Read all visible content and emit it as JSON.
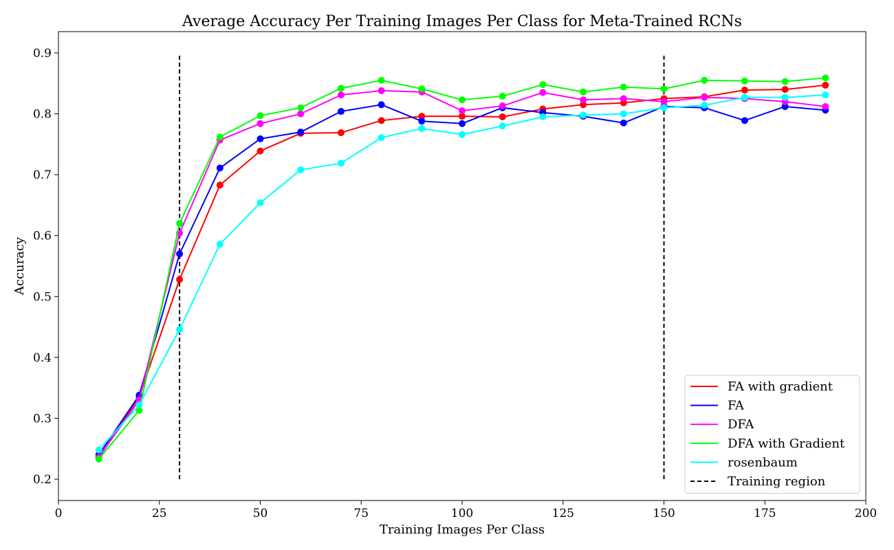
{
  "chart_data": {
    "type": "line",
    "title": "Average Accuracy Per Training Images Per Class for Meta-Trained RCNs",
    "xlabel": "Training Images Per Class",
    "ylabel": "Accuracy",
    "xlim": [
      0,
      200
    ],
    "ylim": [
      0.165,
      0.935
    ],
    "xticks": [
      0,
      25,
      50,
      75,
      100,
      125,
      150,
      175,
      200
    ],
    "yticks": [
      0.2,
      0.3,
      0.4,
      0.5,
      0.6,
      0.7,
      0.8,
      0.9
    ],
    "grid": false,
    "legend_position": "bottom-right",
    "x": [
      10,
      20,
      30,
      40,
      50,
      60,
      70,
      80,
      90,
      100,
      110,
      120,
      130,
      140,
      150,
      160,
      170,
      180,
      190
    ],
    "series": [
      {
        "name": "FA with gradient",
        "color": "#ff0000",
        "values": [
          0.235,
          0.335,
          0.528,
          0.683,
          0.739,
          0.768,
          0.769,
          0.789,
          0.796,
          0.796,
          0.795,
          0.808,
          0.815,
          0.818,
          0.825,
          0.828,
          0.839,
          0.84,
          0.847
        ]
      },
      {
        "name": "FA",
        "color": "#0000ff",
        "values": [
          0.24,
          0.338,
          0.57,
          0.711,
          0.759,
          0.77,
          0.804,
          0.815,
          0.788,
          0.784,
          0.81,
          0.802,
          0.796,
          0.785,
          0.812,
          0.81,
          0.789,
          0.812,
          0.806
        ]
      },
      {
        "name": "DFA",
        "color": "#ff00ff",
        "values": [
          0.236,
          0.33,
          0.604,
          0.757,
          0.784,
          0.8,
          0.831,
          0.838,
          0.836,
          0.805,
          0.813,
          0.835,
          0.823,
          0.825,
          0.82,
          0.827,
          0.825,
          0.82,
          0.812
        ]
      },
      {
        "name": "DFA with Gradient",
        "color": "#00ff00",
        "values": [
          0.233,
          0.313,
          0.62,
          0.762,
          0.797,
          0.81,
          0.842,
          0.855,
          0.841,
          0.823,
          0.829,
          0.848,
          0.836,
          0.844,
          0.841,
          0.855,
          0.854,
          0.853,
          0.859
        ]
      },
      {
        "name": "rosenbaum",
        "color": "#00ffff",
        "values": [
          0.248,
          0.322,
          0.446,
          0.586,
          0.654,
          0.708,
          0.719,
          0.761,
          0.776,
          0.766,
          0.78,
          0.795,
          0.798,
          0.8,
          0.81,
          0.814,
          0.827,
          0.827,
          0.831
        ]
      }
    ],
    "reference_lines": [
      {
        "name": "Training region",
        "x": 30,
        "y_range": [
          0.2,
          0.9
        ],
        "style": "dashed",
        "color": "#000000"
      },
      {
        "name": "Training region",
        "x": 150,
        "y_range": [
          0.2,
          0.9
        ],
        "style": "dashed",
        "color": "#000000"
      }
    ]
  }
}
